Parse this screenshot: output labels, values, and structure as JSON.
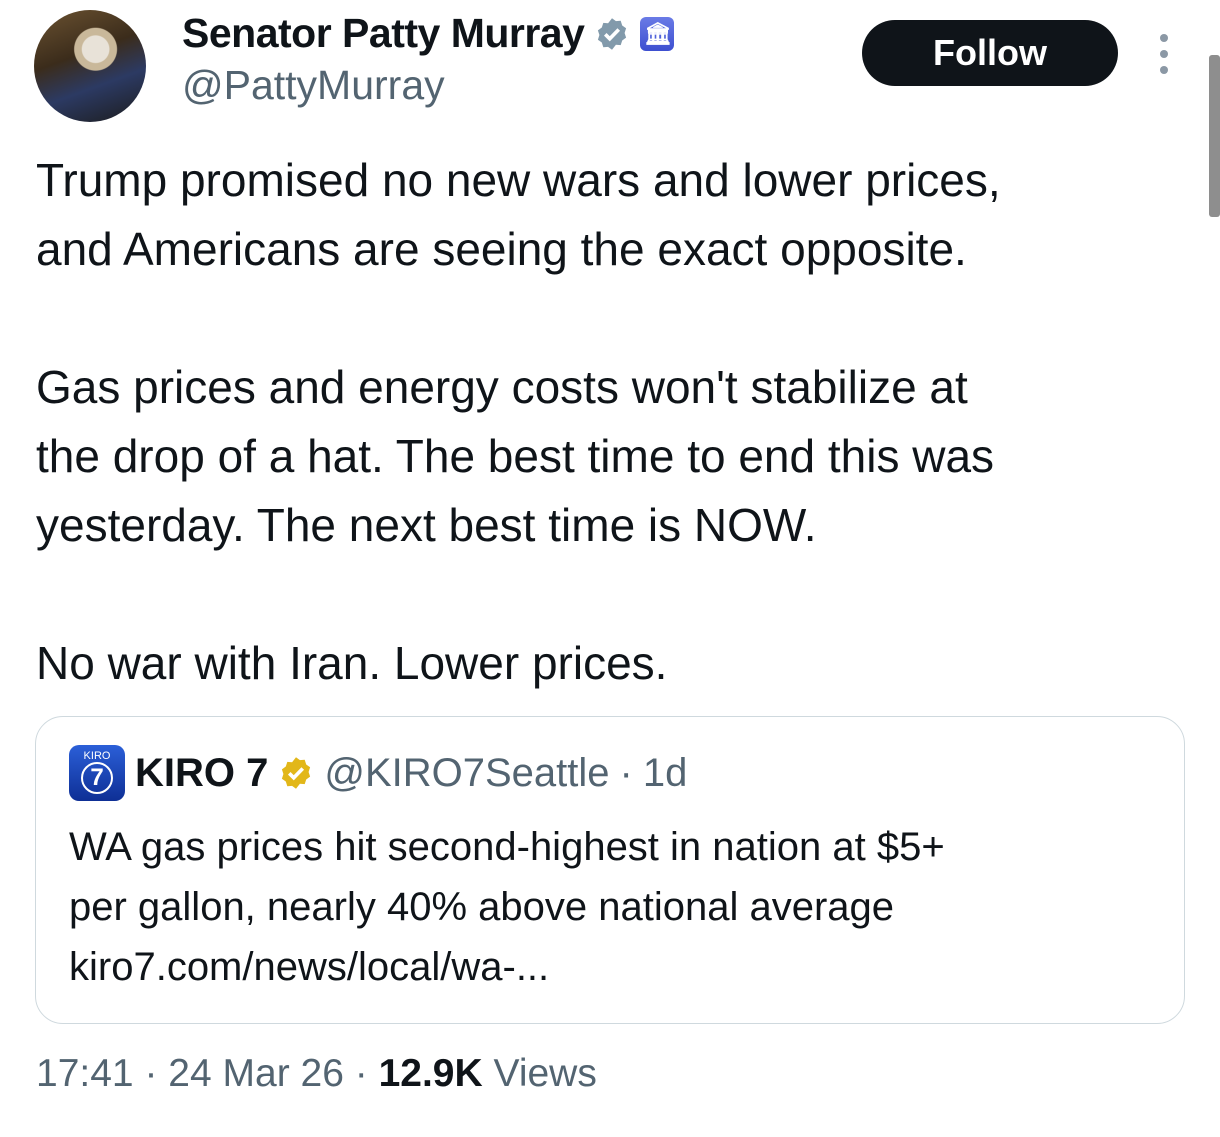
{
  "author": {
    "name": "Senator Patty Murray",
    "handle": "@PattyMurray",
    "verified_badge": "gray-check-badge-icon",
    "affiliate_badge": "capitol-icon"
  },
  "follow_label": "Follow",
  "tweet": {
    "paragraphs": [
      [
        "Trump promised no new wars and lower prices,",
        "and Americans are seeing the exact opposite."
      ],
      [
        "Gas prices and energy costs won't stabilize at",
        "the drop of a hat. The best time to end this was",
        "yesterday. The next best time is NOW."
      ],
      [
        "No war with Iran. Lower prices."
      ]
    ]
  },
  "quote": {
    "logo_text": "KIRO",
    "logo_number": "7",
    "name": "KIRO 7",
    "handle": "@KIRO7Seattle",
    "separator": "·",
    "time": "1d",
    "verified_badge": "gold-check-badge-icon",
    "lines": [
      "WA gas prices hit second-highest in nation at $5+",
      "per gallon, nearly 40% above national average",
      "kiro7.com/news/local/wa-..."
    ]
  },
  "footer": {
    "time": "17:41",
    "separator": "·",
    "date": "24 Mar 26",
    "views_count": "12.9K",
    "views_label": "Views"
  },
  "colors": {
    "text": "#0f1419",
    "secondary": "#536471",
    "border": "#cfd9de",
    "gold": "#e2b719"
  }
}
